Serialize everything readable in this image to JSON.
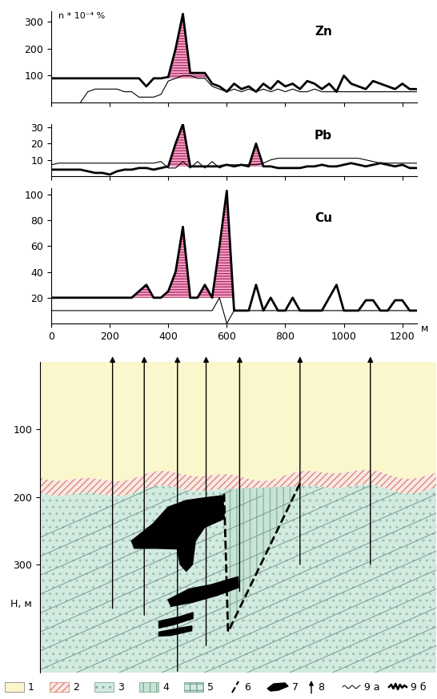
{
  "chart_data": [
    {
      "type": "line",
      "title": "Zn",
      "y_label": "n * 10⁻⁴ %",
      "x": [
        0,
        25,
        50,
        75,
        100,
        125,
        150,
        175,
        200,
        225,
        250,
        275,
        300,
        325,
        350,
        375,
        400,
        425,
        450,
        475,
        500,
        525,
        550,
        575,
        600,
        625,
        650,
        675,
        700,
        725,
        750,
        775,
        800,
        825,
        850,
        875,
        900,
        925,
        950,
        975,
        1000,
        1025,
        1050,
        1075,
        1100,
        1125,
        1150,
        1175,
        1200,
        1225,
        1250
      ],
      "series": [
        {
          "color": "#000000",
          "line_style": "solid",
          "values": [
            90,
            90,
            90,
            90,
            90,
            90,
            90,
            90,
            90,
            90,
            90,
            90,
            90,
            60,
            90,
            90,
            95,
            200,
            330,
            110,
            110,
            110,
            70,
            60,
            40,
            70,
            50,
            60,
            40,
            70,
            50,
            80,
            60,
            70,
            50,
            80,
            70,
            50,
            70,
            40,
            100,
            70,
            60,
            50,
            80,
            70,
            60,
            50,
            70,
            50,
            50
          ]
        },
        {
          "color": "#000000",
          "line_style": "solid",
          "values": [
            null,
            null,
            null,
            null,
            0,
            40,
            50,
            50,
            50,
            50,
            40,
            40,
            20,
            20,
            20,
            30,
            80,
            90,
            100,
            100,
            90,
            90,
            60,
            50,
            40,
            50,
            40,
            50,
            40,
            50,
            40,
            50,
            40,
            50,
            40,
            40,
            50,
            40,
            40,
            40,
            40,
            40,
            40,
            40,
            40,
            40,
            40,
            40,
            40,
            40,
            40
          ]
        }
      ],
      "anomalies": [
        {
          "from": 390,
          "to": 540,
          "background": 90,
          "color": "#f6a9c9"
        }
      ],
      "xlim": [
        0,
        1250
      ],
      "xticks": [
        0,
        200,
        400,
        600,
        800,
        1000,
        1200
      ],
      "ylim": [
        0,
        340
      ],
      "yticks": [
        100,
        200,
        300
      ],
      "tick_labels": "y"
    },
    {
      "type": "line",
      "title": "Pb",
      "x": [
        0,
        25,
        50,
        75,
        100,
        125,
        150,
        175,
        200,
        225,
        250,
        275,
        300,
        325,
        350,
        375,
        400,
        425,
        450,
        475,
        500,
        525,
        550,
        575,
        600,
        625,
        650,
        675,
        700,
        725,
        750,
        775,
        800,
        825,
        850,
        875,
        900,
        925,
        950,
        975,
        1000,
        1025,
        1050,
        1075,
        1100,
        1125,
        1150,
        1175,
        1200,
        1225,
        1250
      ],
      "series": [
        {
          "color": "#000000",
          "line_style": "solid",
          "values": [
            4,
            4,
            4,
            4,
            4,
            3,
            2,
            2,
            1,
            3,
            4,
            4,
            5,
            5,
            4,
            5,
            6,
            20,
            32,
            6,
            6,
            6,
            6,
            6,
            7,
            6,
            7,
            6,
            20,
            6,
            6,
            5,
            5,
            5,
            5,
            6,
            6,
            7,
            6,
            6,
            7,
            8,
            7,
            6,
            7,
            8,
            7,
            6,
            7,
            5,
            5
          ]
        },
        {
          "color": "#000000",
          "line_style": "solid",
          "values": [
            7,
            8,
            8,
            8,
            8,
            8,
            8,
            8,
            8,
            8,
            8,
            8,
            8,
            8,
            8,
            9,
            5,
            5,
            9,
            5,
            9,
            5,
            9,
            5,
            7,
            7,
            7,
            7,
            7,
            8,
            10,
            11,
            11,
            11,
            11,
            11,
            11,
            11,
            11,
            11,
            11,
            11,
            11,
            10,
            9,
            8,
            8,
            8,
            8,
            8,
            8
          ]
        }
      ],
      "anomalies": [
        {
          "from": 400,
          "to": 475,
          "background": 6,
          "color": "#f6a9c9"
        },
        {
          "from": 675,
          "to": 725,
          "background": 6,
          "color": "#f6a9c9"
        }
      ],
      "xlim": [
        0,
        1250
      ],
      "xticks": [
        0,
        200,
        400,
        600,
        800,
        1000,
        1200
      ],
      "ylim": [
        0,
        32
      ],
      "yticks": [
        10,
        20,
        30
      ],
      "tick_labels": "y"
    },
    {
      "type": "line",
      "title": "Cu",
      "x_label": "м",
      "x": [
        0,
        25,
        50,
        75,
        100,
        125,
        150,
        175,
        200,
        225,
        250,
        275,
        300,
        325,
        350,
        375,
        400,
        425,
        450,
        475,
        500,
        525,
        550,
        575,
        600,
        625,
        650,
        675,
        700,
        725,
        750,
        775,
        800,
        825,
        850,
        875,
        900,
        925,
        950,
        975,
        1000,
        1025,
        1050,
        1075,
        1100,
        1125,
        1150,
        1175,
        1200,
        1225,
        1250
      ],
      "series": [
        {
          "color": "#000000",
          "line_style": "solid",
          "values": [
            20,
            20,
            20,
            20,
            20,
            20,
            20,
            20,
            20,
            20,
            20,
            20,
            25,
            30,
            20,
            20,
            25,
            40,
            75,
            20,
            20,
            30,
            20,
            60,
            103,
            10,
            10,
            10,
            30,
            10,
            20,
            10,
            10,
            20,
            10,
            10,
            10,
            10,
            20,
            30,
            10,
            10,
            10,
            18,
            18,
            10,
            10,
            18,
            18,
            10,
            10
          ]
        },
        {
          "color": "#000000",
          "line_style": "solid",
          "values": [
            10,
            10,
            10,
            10,
            10,
            10,
            10,
            10,
            10,
            10,
            10,
            10,
            10,
            10,
            10,
            10,
            10,
            10,
            10,
            10,
            10,
            10,
            10,
            20,
            0,
            10,
            10,
            10,
            10,
            10,
            10,
            10,
            10,
            10,
            10,
            10,
            10,
            10,
            10,
            10,
            10,
            10,
            10,
            10,
            10,
            10,
            10,
            10,
            10,
            10,
            10
          ]
        }
      ],
      "anomalies": [
        {
          "from": 275,
          "to": 350,
          "background": 20,
          "color": "#f6a9c9"
        },
        {
          "from": 400,
          "to": 475,
          "background": 20,
          "color": "#f6a9c9"
        },
        {
          "from": 500,
          "to": 625,
          "background": 20,
          "color": "#f6a9c9"
        }
      ],
      "xlim": [
        0,
        1250
      ],
      "xticks": [
        0,
        200,
        400,
        600,
        800,
        1000,
        1200
      ],
      "ylim": [
        0,
        105
      ],
      "yticks": [
        20,
        40,
        60,
        80,
        100
      ],
      "tick_labels": true
    }
  ],
  "section": {
    "y_label": "H, м",
    "ylim": [
      460,
      0
    ],
    "yticks": [
      100,
      200,
      300
    ],
    "legend_items": [
      "1",
      "2",
      "3",
      "4",
      "5",
      "6",
      "7",
      "8",
      "9 а",
      "9 б"
    ]
  }
}
